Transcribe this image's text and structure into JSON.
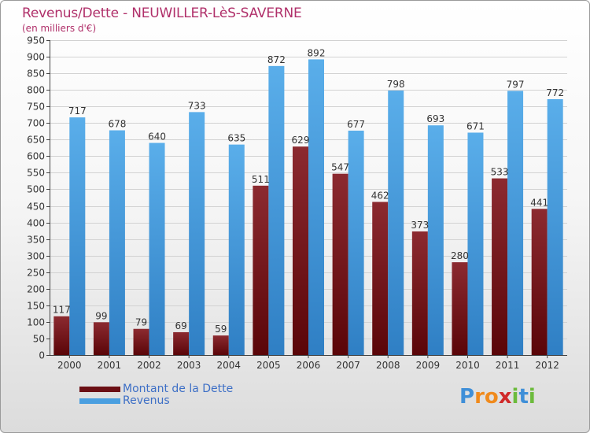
{
  "header": {
    "title": "Revenus/Dette - NEUWILLER-LèS-SAVERNE",
    "subtitle": "(en milliers d'€)"
  },
  "chart_data": {
    "type": "bar",
    "title": "Revenus/Dette - NEUWILLER-LèS-SAVERNE",
    "ylabel": "(en milliers d'€)",
    "xlabel": "",
    "ylim": [
      0,
      950
    ],
    "ytick_step": 50,
    "grid": true,
    "categories": [
      "2000",
      "2001",
      "2002",
      "2003",
      "2004",
      "2005",
      "2006",
      "2007",
      "2008",
      "2009",
      "2010",
      "2011",
      "2012"
    ],
    "series": [
      {
        "name": "Montant de la Dette",
        "color": "#7a1a1f",
        "values": [
          117,
          99,
          79,
          69,
          59,
          511,
          629,
          547,
          462,
          373,
          280,
          533,
          441
        ]
      },
      {
        "name": "Revenus",
        "color": "#4a9fe0",
        "values": [
          717,
          678,
          640,
          733,
          635,
          872,
          892,
          677,
          798,
          693,
          671,
          797,
          772
        ]
      }
    ],
    "legend_position": "bottom-left"
  },
  "legend": {
    "items": [
      {
        "label": "Montant de la Dette",
        "color": "#6b0f14"
      },
      {
        "label": "Revenus",
        "color": "#4a9fe0"
      }
    ]
  },
  "brand": {
    "letters": [
      {
        "ch": "P",
        "color": "#3f8fd8"
      },
      {
        "ch": "r",
        "color": "#f08a1c"
      },
      {
        "ch": "o",
        "color": "#f08a1c"
      },
      {
        "ch": "x",
        "color": "#d02a2a"
      },
      {
        "ch": "i",
        "color": "#6cbb3c"
      },
      {
        "ch": "t",
        "color": "#3f8fd8"
      },
      {
        "ch": "i",
        "color": "#6cbb3c"
      }
    ]
  }
}
